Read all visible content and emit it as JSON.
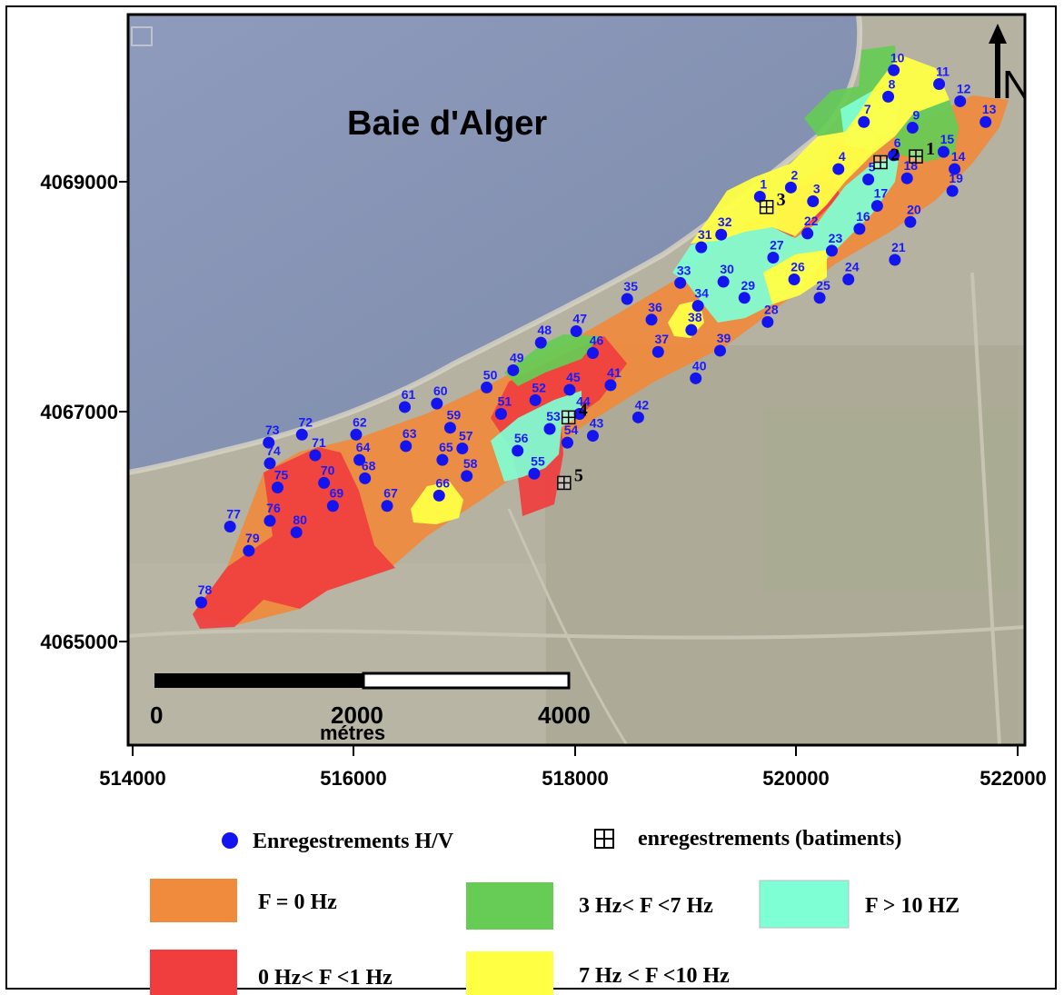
{
  "map": {
    "title": "Baie d'Alger",
    "north_label": "N",
    "y_ticks": [
      "4069000",
      "4067000",
      "4065000"
    ],
    "x_ticks": [
      "514000",
      "516000",
      "518000",
      "520000",
      "522000"
    ],
    "scale_bar": {
      "labels": [
        "0",
        "2000",
        "4000"
      ],
      "unit": "métres"
    },
    "hv_points": [
      {
        "id": "1",
        "e": 519670,
        "n": 4068870
      },
      {
        "id": "2",
        "e": 519950,
        "n": 4068950
      },
      {
        "id": "3",
        "e": 520150,
        "n": 4068830
      },
      {
        "id": "4",
        "e": 520380,
        "n": 4069110
      },
      {
        "id": "5",
        "e": 520650,
        "n": 4069020
      },
      {
        "id": "6",
        "e": 520880,
        "n": 4069230
      },
      {
        "id": "7",
        "e": 520610,
        "n": 4069520
      },
      {
        "id": "8",
        "e": 520830,
        "n": 4069740
      },
      {
        "id": "9",
        "e": 521050,
        "n": 4069470
      },
      {
        "id": "10",
        "e": 520880,
        "n": 4069970
      },
      {
        "id": "11",
        "e": 521290,
        "n": 4069850
      },
      {
        "id": "12",
        "e": 521480,
        "n": 4069700
      },
      {
        "id": "13",
        "e": 521710,
        "n": 4069520
      },
      {
        "id": "14",
        "e": 521430,
        "n": 4069110
      },
      {
        "id": "15",
        "e": 521330,
        "n": 4069260
      },
      {
        "id": "16",
        "e": 520570,
        "n": 4068590
      },
      {
        "id": "17",
        "e": 520730,
        "n": 4068790
      },
      {
        "id": "18",
        "e": 521000,
        "n": 4069030
      },
      {
        "id": "19",
        "e": 521410,
        "n": 4068920
      },
      {
        "id": "20",
        "e": 521030,
        "n": 4068650
      },
      {
        "id": "21",
        "e": 520890,
        "n": 4068320
      },
      {
        "id": "22",
        "e": 520100,
        "n": 4068550
      },
      {
        "id": "23",
        "e": 520320,
        "n": 4068400
      },
      {
        "id": "24",
        "e": 520470,
        "n": 4068150
      },
      {
        "id": "25",
        "e": 520210,
        "n": 4067990
      },
      {
        "id": "26",
        "e": 519980,
        "n": 4068150
      },
      {
        "id": "27",
        "e": 519790,
        "n": 4068340
      },
      {
        "id": "28",
        "e": 519740,
        "n": 4067780
      },
      {
        "id": "29",
        "e": 519530,
        "n": 4067990
      },
      {
        "id": "30",
        "e": 519340,
        "n": 4068130
      },
      {
        "id": "31",
        "e": 519140,
        "n": 4068430
      },
      {
        "id": "32",
        "e": 519320,
        "n": 4068540
      },
      {
        "id": "33",
        "e": 518950,
        "n": 4068120
      },
      {
        "id": "34",
        "e": 519110,
        "n": 4067920
      },
      {
        "id": "35",
        "e": 518470,
        "n": 4067980
      },
      {
        "id": "36",
        "e": 518690,
        "n": 4067800
      },
      {
        "id": "37",
        "e": 518750,
        "n": 4067520
      },
      {
        "id": "38",
        "e": 519050,
        "n": 4067710
      },
      {
        "id": "39",
        "e": 519310,
        "n": 4067530
      },
      {
        "id": "40",
        "e": 519090,
        "n": 4067290
      },
      {
        "id": "41",
        "e": 518320,
        "n": 4067230
      },
      {
        "id": "42",
        "e": 518570,
        "n": 4066950
      },
      {
        "id": "43",
        "e": 518160,
        "n": 4066790
      },
      {
        "id": "44",
        "e": 518040,
        "n": 4066980
      },
      {
        "id": "45",
        "e": 517950,
        "n": 4067190
      },
      {
        "id": "46",
        "e": 518160,
        "n": 4067510
      },
      {
        "id": "47",
        "e": 518010,
        "n": 4067700
      },
      {
        "id": "48",
        "e": 517690,
        "n": 4067600
      },
      {
        "id": "49",
        "e": 517440,
        "n": 4067360
      },
      {
        "id": "50",
        "e": 517200,
        "n": 4067210
      },
      {
        "id": "51",
        "e": 517330,
        "n": 4066980
      },
      {
        "id": "52",
        "e": 517640,
        "n": 4067100
      },
      {
        "id": "53",
        "e": 517770,
        "n": 4066850
      },
      {
        "id": "54",
        "e": 517930,
        "n": 4066730
      },
      {
        "id": "55",
        "e": 517630,
        "n": 4066460
      },
      {
        "id": "56",
        "e": 517480,
        "n": 4066660
      },
      {
        "id": "57",
        "e": 516980,
        "n": 4066680
      },
      {
        "id": "58",
        "e": 517020,
        "n": 4066440
      },
      {
        "id": "59",
        "e": 516870,
        "n": 4066860
      },
      {
        "id": "60",
        "e": 516750,
        "n": 4067070
      },
      {
        "id": "61",
        "e": 516460,
        "n": 4067040
      },
      {
        "id": "62",
        "e": 516020,
        "n": 4066800
      },
      {
        "id": "63",
        "e": 516470,
        "n": 4066700
      },
      {
        "id": "64",
        "e": 516050,
        "n": 4066580
      },
      {
        "id": "65",
        "e": 516800,
        "n": 4066580
      },
      {
        "id": "66",
        "e": 516770,
        "n": 4066270
      },
      {
        "id": "67",
        "e": 516300,
        "n": 4066180
      },
      {
        "id": "68",
        "e": 516100,
        "n": 4066420
      },
      {
        "id": "69",
        "e": 515810,
        "n": 4066180
      },
      {
        "id": "70",
        "e": 515730,
        "n": 4066380
      },
      {
        "id": "71",
        "e": 515650,
        "n": 4066620
      },
      {
        "id": "72",
        "e": 515530,
        "n": 4066800
      },
      {
        "id": "73",
        "e": 515230,
        "n": 4066730
      },
      {
        "id": "74",
        "e": 515240,
        "n": 4066550
      },
      {
        "id": "75",
        "e": 515310,
        "n": 4066340
      },
      {
        "id": "76",
        "e": 515240,
        "n": 4066050
      },
      {
        "id": "77",
        "e": 514880,
        "n": 4066000
      },
      {
        "id": "78",
        "e": 514620,
        "n": 4065340
      },
      {
        "id": "79",
        "e": 515050,
        "n": 4065790
      },
      {
        "id": "80",
        "e": 515480,
        "n": 4065950
      }
    ],
    "buildings": [
      {
        "id": "1",
        "e": 521080,
        "n": 4069220
      },
      {
        "id": "2",
        "e": 520760,
        "n": 4069170
      },
      {
        "id": "3",
        "e": 519730,
        "n": 4068780
      },
      {
        "id": "4",
        "e": 517940,
        "n": 4066950
      },
      {
        "id": "5",
        "e": 517900,
        "n": 4066380
      }
    ]
  },
  "legend": {
    "hv_label": "Enregestrements H/V",
    "building_label": "enregestrements (batiments)",
    "classes": [
      {
        "label": "F  = 0 Hz",
        "color": "#f08a3c"
      },
      {
        "label": "3 Hz< F <7 Hz",
        "color": "#66cc55"
      },
      {
        "label": "F > 10 HZ",
        "color": "#7fffd4"
      },
      {
        "label": "0 Hz< F <1 Hz",
        "color": "#f03e3e"
      },
      {
        "label": "7 Hz < F <10 Hz",
        "color": "#ffff44"
      }
    ]
  },
  "colors": {
    "sea": "#8a98b8",
    "land": "#b8b4a4",
    "zone_orange": "#f08a3c",
    "zone_red": "#f03e3e",
    "zone_green": "#66cc55",
    "zone_cyan": "#7fffd4",
    "zone_yellow": "#ffff44",
    "point": "#1414ee"
  }
}
